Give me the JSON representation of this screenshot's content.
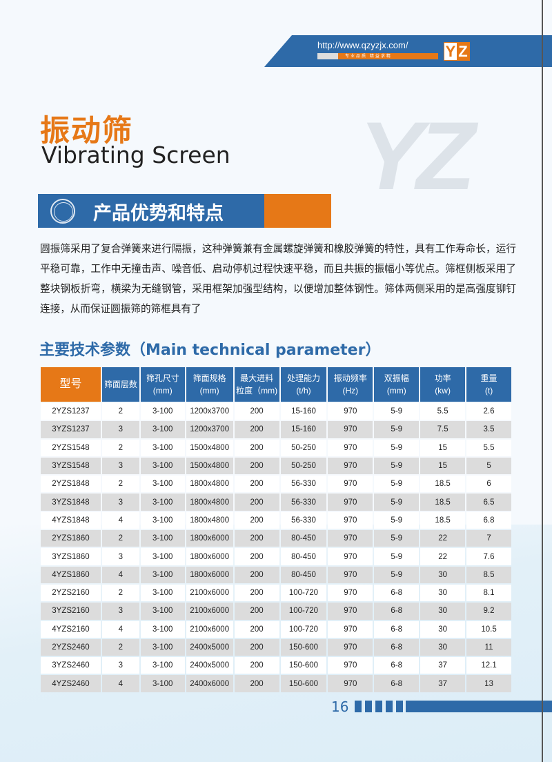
{
  "header": {
    "url": "http://www.qzyzjx.com/",
    "slogan": "专业品质  精益求精",
    "logo": "YZ",
    "watermark": "YZ"
  },
  "title": {
    "cn": "振动筛",
    "en": "Vibrating Screen"
  },
  "section": {
    "title": "产品优势和特点"
  },
  "description": "圆振筛采用了复合弹簧来进行隔振，这种弹簧兼有金属螺旋弹簧和橡胶弹簧的特性，具有工作寿命长，运行平稳可靠，工作中无撞击声、噪音低、启动停机过程快速平稳，而且共振的振幅小等优点。筛框侧板采用了整块钢板折弯，横梁为无缝钢管，采用框架加强型结构，以便增加整体钢性。筛体两侧采用的是高强度铆钉连接，从而保证圆振筛的筛框具有了",
  "params_title": "主要技术参数（Main technical parameter）",
  "table": {
    "headers": [
      [
        "型号",
        ""
      ],
      [
        "筛面层数",
        ""
      ],
      [
        "筛孔尺寸",
        "(mm)"
      ],
      [
        "筛面规格",
        "(mm)"
      ],
      [
        "最大进料",
        "粒度（mm)"
      ],
      [
        "处理能力",
        "(t/h)"
      ],
      [
        "振动频率",
        "(Hz)"
      ],
      [
        "双振幅",
        "(mm)"
      ],
      [
        "功率",
        "(kw)"
      ],
      [
        "重量",
        "(t)"
      ]
    ],
    "rows": [
      [
        "2YZS1237",
        "2",
        "3-100",
        "1200x3700",
        "200",
        "15-160",
        "970",
        "5-9",
        "5.5",
        "2.6"
      ],
      [
        "3YZS1237",
        "3",
        "3-100",
        "1200x3700",
        "200",
        "15-160",
        "970",
        "5-9",
        "7.5",
        "3.5"
      ],
      [
        "2YZS1548",
        "2",
        "3-100",
        "1500x4800",
        "200",
        "50-250",
        "970",
        "5-9",
        "15",
        "5.5"
      ],
      [
        "3YZS1548",
        "3",
        "3-100",
        "1500x4800",
        "200",
        "50-250",
        "970",
        "5-9",
        "15",
        "5"
      ],
      [
        "2YZS1848",
        "2",
        "3-100",
        "1800x4800",
        "200",
        "56-330",
        "970",
        "5-9",
        "18.5",
        "6"
      ],
      [
        "3YZS1848",
        "3",
        "3-100",
        "1800x4800",
        "200",
        "56-330",
        "970",
        "5-9",
        "18.5",
        "6.5"
      ],
      [
        "4YZS1848",
        "4",
        "3-100",
        "1800x4800",
        "200",
        "56-330",
        "970",
        "5-9",
        "18.5",
        "6.8"
      ],
      [
        "2YZS1860",
        "2",
        "3-100",
        "1800x6000",
        "200",
        "80-450",
        "970",
        "5-9",
        "22",
        "7"
      ],
      [
        "3YZS1860",
        "3",
        "3-100",
        "1800x6000",
        "200",
        "80-450",
        "970",
        "5-9",
        "22",
        "7.6"
      ],
      [
        "4YZS1860",
        "4",
        "3-100",
        "1800x6000",
        "200",
        "80-450",
        "970",
        "5-9",
        "30",
        "8.5"
      ],
      [
        "2YZS2160",
        "2",
        "3-100",
        "2100x6000",
        "200",
        "100-720",
        "970",
        "6-8",
        "30",
        "8.1"
      ],
      [
        "3YZS2160",
        "3",
        "3-100",
        "2100x6000",
        "200",
        "100-720",
        "970",
        "6-8",
        "30",
        "9.2"
      ],
      [
        "4YZS2160",
        "4",
        "3-100",
        "2100x6000",
        "200",
        "100-720",
        "970",
        "6-8",
        "30",
        "10.5"
      ],
      [
        "2YZS2460",
        "2",
        "3-100",
        "2400x5000",
        "200",
        "150-600",
        "970",
        "6-8",
        "30",
        "11"
      ],
      [
        "3YZS2460",
        "3",
        "3-100",
        "2400x5000",
        "200",
        "150-600",
        "970",
        "6-8",
        "37",
        "12.1"
      ],
      [
        "4YZS2460",
        "4",
        "3-100",
        "2400x6000",
        "200",
        "150-600",
        "970",
        "6-8",
        "37",
        "13"
      ]
    ]
  },
  "page_number": "16",
  "colors": {
    "blue": "#2e6aa8",
    "orange": "#e67817"
  }
}
